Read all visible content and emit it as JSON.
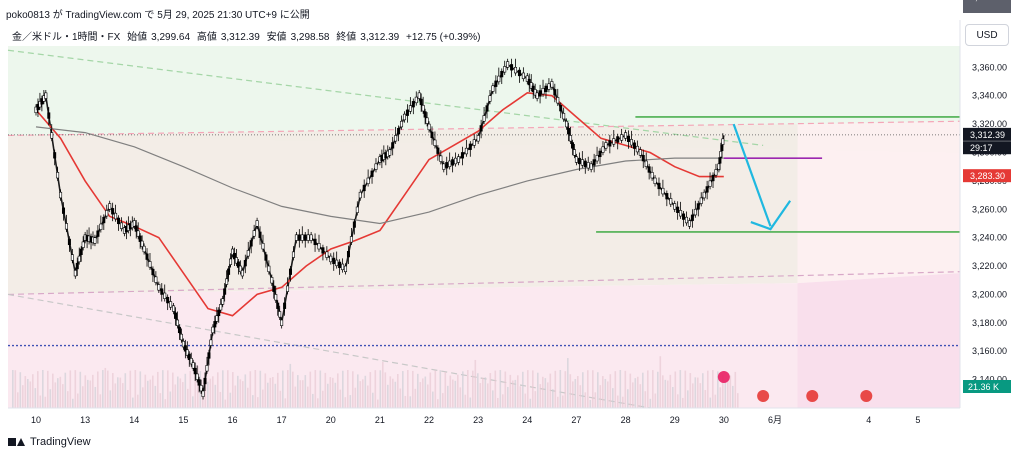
{
  "header": {
    "text": "poko0813 が TradingView.com で 5月 29, 2025 21:30 UTC+9 に公開"
  },
  "legend": {
    "symbol": "金／米ドル・1時間・FX",
    "open_label": "始値",
    "open": "3,299.64",
    "high_label": "高値",
    "high": "3,312.39",
    "low_label": "安値",
    "low": "3,298.58",
    "close_label": "終値",
    "close": "3,312.39",
    "change": "+12.75 (+0.39%)"
  },
  "currency_button": "USD",
  "footer": {
    "brand": "TradingView"
  },
  "colors": {
    "up": "#000000",
    "ema_red": "#e53935",
    "sma_gray": "#808080",
    "green_line": "#4caf50",
    "purple_line": "#9c27b0",
    "blue_dotted": "#3f51b5",
    "arrow": "#1fb8e0",
    "price_tag_dark": "#131722",
    "price_tag_gray": "#5d606b",
    "price_tag_red": "#e53935",
    "volume_tag": "#089981"
  },
  "chart_data": {
    "type": "line",
    "title": "",
    "xlabel": "",
    "ylabel": "",
    "ylim": [
      3120,
      3375
    ],
    "y_ticks": [
      "3,360.00",
      "3,340.00",
      "3,320.00",
      "3,300.00",
      "3,280.00",
      "3,260.00",
      "3,240.00",
      "3,220.00",
      "3,200.00",
      "3,180.00",
      "3,160.00",
      "3,140.00"
    ],
    "y_tick_values": [
      3360,
      3340,
      3320,
      3300,
      3280,
      3260,
      3240,
      3220,
      3200,
      3180,
      3160,
      3140
    ],
    "x_ticks": [
      "10",
      "13",
      "14",
      "15",
      "16",
      "17",
      "20",
      "21",
      "22",
      "23",
      "24",
      "27",
      "28",
      "29",
      "30",
      "6月",
      "4",
      "5"
    ],
    "x_tick_index": [
      0,
      1,
      2,
      3,
      4,
      5,
      6,
      7,
      8,
      9,
      10,
      11,
      12,
      13,
      14,
      15,
      17,
      18
    ],
    "series": [
      {
        "name": "",
        "x": [
          0,
          0.2,
          0.5,
          0.8,
          1,
          1.2,
          1.5,
          1.8,
          2,
          2.2,
          2.5,
          2.8,
          3,
          3.2,
          3.4,
          3.6,
          3.8,
          4,
          4.2,
          4.5,
          4.8,
          5,
          5.3,
          5.6,
          6,
          6.3,
          6.6,
          7,
          7.2,
          7.5,
          7.8,
          8,
          8.3,
          8.6,
          9,
          9.3,
          9.6,
          10,
          10.2,
          10.5,
          10.8,
          11,
          11.3,
          11.6,
          12,
          12.3,
          12.6,
          13,
          13.3,
          13.6,
          13.9,
          14
        ],
        "values": [
          3330,
          3340,
          3270,
          3215,
          3240,
          3238,
          3262,
          3245,
          3250,
          3232,
          3205,
          3190,
          3165,
          3150,
          3130,
          3175,
          3195,
          3230,
          3215,
          3250,
          3210,
          3180,
          3240,
          3240,
          3225,
          3218,
          3270,
          3295,
          3300,
          3325,
          3340,
          3318,
          3290,
          3295,
          3310,
          3345,
          3362,
          3352,
          3340,
          3348,
          3320,
          3295,
          3290,
          3305,
          3312,
          3300,
          3280,
          3262,
          3250,
          3270,
          3290,
          3312
        ]
      },
      {
        "name": "",
        "x": [
          0,
          0.5,
          1,
          1.5,
          2,
          2.5,
          3,
          3.5,
          4,
          4.5,
          5,
          5.5,
          6,
          6.5,
          7,
          7.5,
          8,
          8.5,
          9,
          9.5,
          10,
          10.5,
          11,
          11.5,
          12,
          12.5,
          13,
          13.5,
          14
        ],
        "values": [
          3330,
          3310,
          3280,
          3255,
          3248,
          3240,
          3215,
          3190,
          3185,
          3200,
          3205,
          3220,
          3232,
          3238,
          3245,
          3270,
          3295,
          3305,
          3315,
          3330,
          3342,
          3340,
          3325,
          3310,
          3305,
          3300,
          3290,
          3283,
          3283
        ]
      },
      {
        "name": "",
        "x": [
          0,
          1,
          2,
          3,
          4,
          5,
          6,
          7,
          8,
          9,
          10,
          11,
          12,
          13,
          14
        ],
        "values": [
          3318,
          3314,
          3304,
          3290,
          3275,
          3262,
          3255,
          3250,
          3258,
          3270,
          3280,
          3288,
          3294,
          3296,
          3296
        ]
      }
    ],
    "levels": {
      "current": "3,312.39",
      "countdown": "29:17",
      "sma": "3,296.44",
      "ema": "3,283.30",
      "volume": "21.36 K",
      "resistance": 3325,
      "support": 3244,
      "dotted_blue": 3164,
      "purple": 3296
    },
    "grid": false,
    "legend": "none"
  }
}
